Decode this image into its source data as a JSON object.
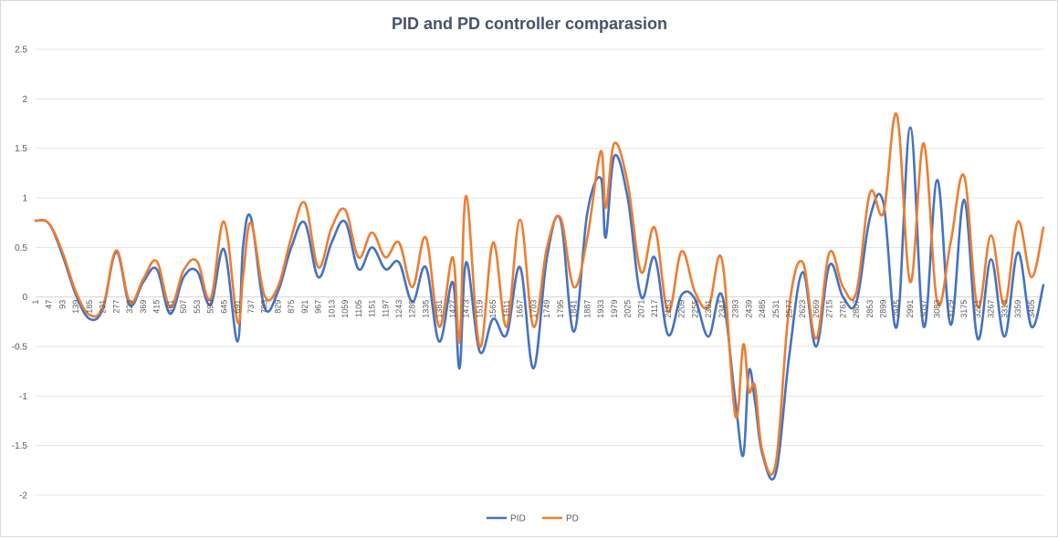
{
  "chart_data": {
    "type": "line",
    "title": "PID and PD controller  comparasion",
    "xlabel": "",
    "ylabel": "",
    "ylim": [
      -2,
      2.5
    ],
    "xlim": [
      1,
      3446
    ],
    "y_ticks": [
      "2.5",
      "2",
      "1.5",
      "1",
      "0.5",
      "0",
      "-0.5",
      "-1",
      "-1.5",
      "-2"
    ],
    "x_ticks": [
      "1",
      "47",
      "93",
      "139",
      "185",
      "231",
      "277",
      "323",
      "369",
      "415",
      "461",
      "507",
      "553",
      "599",
      "645",
      "691",
      "737",
      "783",
      "829",
      "875",
      "921",
      "967",
      "1013",
      "1059",
      "1105",
      "1151",
      "1197",
      "1243",
      "1289",
      "1335",
      "1381",
      "1427",
      "1473",
      "1519",
      "1565",
      "1611",
      "1657",
      "1703",
      "1749",
      "1795",
      "1841",
      "1887",
      "1933",
      "1979",
      "2025",
      "2071",
      "2117",
      "2163",
      "2209",
      "2255",
      "2301",
      "2347",
      "2393",
      "2439",
      "2485",
      "2531",
      "2577",
      "2623",
      "2669",
      "2715",
      "2761",
      "2807",
      "2853",
      "2899",
      "2945",
      "2991",
      "3037",
      "3083",
      "3129",
      "3175",
      "3221",
      "3267",
      "3313",
      "3359",
      "3405"
    ],
    "grid": true,
    "legend_position": "bottom",
    "series": [
      {
        "name": "PID",
        "color": "#4472c4",
        "x": [
          1,
          47,
          93,
          139,
          185,
          231,
          277,
          323,
          369,
          415,
          461,
          507,
          553,
          599,
          645,
          691,
          710,
          737,
          783,
          829,
          875,
          921,
          967,
          1013,
          1059,
          1105,
          1151,
          1197,
          1243,
          1289,
          1335,
          1381,
          1427,
          1450,
          1473,
          1519,
          1565,
          1611,
          1657,
          1703,
          1749,
          1795,
          1841,
          1887,
          1933,
          1950,
          1979,
          2025,
          2071,
          2117,
          2163,
          2209,
          2255,
          2301,
          2347,
          2393,
          2420,
          2439,
          2460,
          2485,
          2531,
          2577,
          2623,
          2669,
          2715,
          2761,
          2807,
          2853,
          2899,
          2945,
          2991,
          3037,
          3083,
          3129,
          3175,
          3221,
          3267,
          3313,
          3359,
          3405,
          3446
        ],
        "values": [
          0.77,
          0.74,
          0.42,
          0.02,
          -0.22,
          -0.12,
          0.45,
          -0.08,
          0.15,
          0.28,
          -0.17,
          0.2,
          0.26,
          -0.08,
          0.48,
          -0.45,
          0.5,
          0.8,
          -0.1,
          0.05,
          0.5,
          0.75,
          0.2,
          0.55,
          0.76,
          0.28,
          0.5,
          0.28,
          0.35,
          -0.05,
          0.3,
          -0.45,
          0.15,
          -0.72,
          0.35,
          -0.55,
          -0.22,
          -0.38,
          0.3,
          -0.72,
          0.4,
          0.78,
          -0.35,
          0.85,
          1.2,
          0.6,
          1.42,
          1.0,
          0.0,
          0.4,
          -0.38,
          0.02,
          -0.02,
          -0.4,
          0.02,
          -1.05,
          -1.6,
          -0.75,
          -1.05,
          -1.58,
          -1.78,
          -0.6,
          0.25,
          -0.5,
          0.32,
          0.0,
          -0.05,
          0.8,
          0.95,
          -0.3,
          1.71,
          -0.3,
          1.18,
          -0.28,
          0.98,
          -0.42,
          0.38,
          -0.4,
          0.45,
          -0.3,
          0.12
        ]
      },
      {
        "name": "PD",
        "color": "#ed7d31",
        "x": [
          1,
          47,
          93,
          139,
          185,
          231,
          277,
          323,
          369,
          415,
          461,
          507,
          553,
          599,
          645,
          691,
          710,
          737,
          783,
          829,
          875,
          921,
          967,
          1013,
          1059,
          1105,
          1151,
          1197,
          1243,
          1289,
          1335,
          1381,
          1427,
          1450,
          1473,
          1519,
          1565,
          1611,
          1657,
          1703,
          1749,
          1795,
          1841,
          1887,
          1933,
          1950,
          1979,
          2025,
          2071,
          2117,
          2163,
          2209,
          2255,
          2301,
          2347,
          2393,
          2420,
          2439,
          2460,
          2485,
          2531,
          2577,
          2623,
          2669,
          2715,
          2761,
          2807,
          2853,
          2899,
          2945,
          2991,
          3037,
          3083,
          3129,
          3175,
          3221,
          3267,
          3313,
          3359,
          3405,
          3446
        ],
        "values": [
          0.77,
          0.74,
          0.45,
          0.05,
          -0.18,
          -0.1,
          0.47,
          -0.05,
          0.18,
          0.36,
          -0.1,
          0.27,
          0.36,
          -0.02,
          0.76,
          -0.25,
          0.2,
          0.75,
          0.02,
          0.1,
          0.6,
          0.95,
          0.3,
          0.7,
          0.88,
          0.4,
          0.65,
          0.4,
          0.55,
          0.1,
          0.6,
          -0.3,
          0.4,
          -0.45,
          1.02,
          -0.5,
          0.55,
          -0.3,
          0.78,
          -0.3,
          0.5,
          0.8,
          0.1,
          0.6,
          1.47,
          0.9,
          1.55,
          1.15,
          0.25,
          0.7,
          -0.15,
          0.46,
          0.05,
          -0.1,
          0.38,
          -1.2,
          -0.48,
          -0.95,
          -0.9,
          -1.55,
          -1.68,
          -0.1,
          0.35,
          -0.42,
          0.45,
          0.1,
          0.05,
          1.05,
          0.85,
          1.84,
          0.15,
          1.55,
          -0.05,
          0.55,
          1.22,
          -0.1,
          0.62,
          -0.08,
          0.76,
          0.2,
          0.7
        ]
      }
    ]
  }
}
